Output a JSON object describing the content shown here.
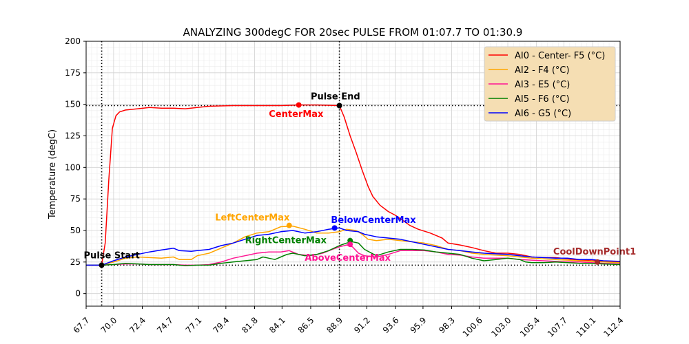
{
  "chart_data": {
    "type": "line",
    "title": "ANALYZING 300degC FOR 20sec PULSE FROM 01:07.7 TO 01:30.9",
    "xlabel": "",
    "ylabel": "Temperature (degC)",
    "xlim": [
      67.7,
      112.4
    ],
    "ylim": [
      -10,
      200
    ],
    "grid": true,
    "legend_position": "top-right",
    "x_ticks": [
      67.7,
      70.0,
      72.4,
      74.7,
      77.1,
      79.4,
      81.8,
      84.1,
      86.5,
      88.9,
      91.2,
      93.6,
      95.9,
      98.3,
      100.6,
      103.0,
      105.4,
      107.7,
      110.1,
      112.4
    ],
    "x_tick_labels": [
      "67.7",
      "70.0",
      "72.4",
      "74.7",
      "77.1",
      "79.4",
      "81.8",
      "84.1",
      "86.5",
      "88.9",
      "91.2",
      "93.6",
      "95.9",
      "98.3",
      "100.6",
      "103.0",
      "105.4",
      "107.7",
      "110.1",
      "112.4"
    ],
    "y_ticks": [
      0,
      25,
      50,
      75,
      100,
      125,
      150,
      175,
      200
    ],
    "y_tick_labels": [
      "0",
      "25",
      "50",
      "75",
      "100",
      "125",
      "150",
      "175",
      "200"
    ],
    "series": [
      {
        "name": "AI0 - Center- F5 (°C)",
        "color": "#ff0000",
        "points": [
          [
            67.7,
            22.5
          ],
          [
            68.5,
            22.5
          ],
          [
            69.0,
            22.5
          ],
          [
            69.3,
            40
          ],
          [
            69.6,
            90
          ],
          [
            69.9,
            131
          ],
          [
            70.2,
            141
          ],
          [
            70.5,
            144
          ],
          [
            71.0,
            145.5
          ],
          [
            72.0,
            146.5
          ],
          [
            73.0,
            147.5
          ],
          [
            74.0,
            147
          ],
          [
            75.0,
            147
          ],
          [
            76.0,
            146.5
          ],
          [
            77.0,
            147.5
          ],
          [
            78.0,
            148.5
          ],
          [
            80.0,
            149
          ],
          [
            82.0,
            149
          ],
          [
            84.0,
            149
          ],
          [
            85.5,
            149.5
          ],
          [
            87.0,
            149.5
          ],
          [
            88.9,
            149
          ],
          [
            89.3,
            140
          ],
          [
            89.8,
            125
          ],
          [
            90.3,
            112
          ],
          [
            90.8,
            98
          ],
          [
            91.3,
            85
          ],
          [
            91.7,
            77
          ],
          [
            92.3,
            70
          ],
          [
            93.0,
            65
          ],
          [
            93.6,
            62
          ],
          [
            94.2,
            58
          ],
          [
            94.8,
            54
          ],
          [
            95.5,
            51
          ],
          [
            96.5,
            48
          ],
          [
            97.5,
            44
          ],
          [
            98.0,
            40
          ],
          [
            99.0,
            38.5
          ],
          [
            100.0,
            36.5
          ],
          [
            101.0,
            34
          ],
          [
            102.0,
            32
          ],
          [
            103.0,
            32
          ],
          [
            104.0,
            31
          ],
          [
            105.0,
            29
          ],
          [
            106.0,
            28.5
          ],
          [
            107.0,
            28.5
          ],
          [
            108.0,
            27.5
          ],
          [
            109.0,
            26.5
          ],
          [
            110.0,
            26
          ],
          [
            111.0,
            25.5
          ],
          [
            112.4,
            25
          ]
        ]
      },
      {
        "name": "AI2 - F4 (°C)",
        "color": "#ffa500",
        "points": [
          [
            67.7,
            22.5
          ],
          [
            69.0,
            22.5
          ],
          [
            70.0,
            25
          ],
          [
            71.0,
            28
          ],
          [
            72.0,
            29
          ],
          [
            73.0,
            28.5
          ],
          [
            74.0,
            28
          ],
          [
            75.0,
            29
          ],
          [
            75.5,
            27
          ],
          [
            76.5,
            27
          ],
          [
            77.0,
            30
          ],
          [
            78.0,
            32
          ],
          [
            79.0,
            36
          ],
          [
            80.0,
            40
          ],
          [
            81.0,
            45
          ],
          [
            82.0,
            48
          ],
          [
            83.0,
            49
          ],
          [
            84.0,
            53
          ],
          [
            85.0,
            53.5
          ],
          [
            86.0,
            51
          ],
          [
            87.0,
            48
          ],
          [
            88.0,
            48
          ],
          [
            88.9,
            49
          ],
          [
            89.5,
            51
          ],
          [
            90.3,
            50
          ],
          [
            90.8,
            47
          ],
          [
            91.3,
            43
          ],
          [
            92.0,
            42
          ],
          [
            93.0,
            43
          ],
          [
            94.0,
            42
          ],
          [
            95.0,
            41
          ],
          [
            96.0,
            40
          ],
          [
            97.0,
            38
          ],
          [
            98.0,
            35
          ],
          [
            99.0,
            34
          ],
          [
            100.0,
            32
          ],
          [
            101.0,
            31
          ],
          [
            102.0,
            30.5
          ],
          [
            103.0,
            30
          ],
          [
            104.0,
            29
          ],
          [
            105.0,
            28
          ],
          [
            106.0,
            27.5
          ],
          [
            107.0,
            27
          ],
          [
            108.0,
            26.5
          ],
          [
            109.0,
            26
          ],
          [
            110.0,
            25.5
          ],
          [
            111.0,
            25
          ],
          [
            112.4,
            24.5
          ]
        ]
      },
      {
        "name": "AI3 - E5 (°C)",
        "color": "#ff1493",
        "points": [
          [
            67.7,
            22.5
          ],
          [
            69.0,
            22.5
          ],
          [
            70.0,
            23
          ],
          [
            71.0,
            23.5
          ],
          [
            72.0,
            23.5
          ],
          [
            73.0,
            23
          ],
          [
            74.0,
            23
          ],
          [
            75.0,
            23
          ],
          [
            76.0,
            22.5
          ],
          [
            77.0,
            22.5
          ],
          [
            78.0,
            23
          ],
          [
            79.0,
            25
          ],
          [
            80.0,
            28
          ],
          [
            81.0,
            30
          ],
          [
            82.0,
            32
          ],
          [
            83.0,
            33
          ],
          [
            84.0,
            33
          ],
          [
            84.7,
            34
          ],
          [
            85.5,
            31
          ],
          [
            86.5,
            30
          ],
          [
            87.5,
            32
          ],
          [
            88.3,
            35
          ],
          [
            88.9,
            37
          ],
          [
            89.5,
            38.5
          ],
          [
            90.0,
            37
          ],
          [
            90.5,
            32
          ],
          [
            91.0,
            30
          ],
          [
            92.0,
            29
          ],
          [
            93.0,
            31
          ],
          [
            94.0,
            34
          ],
          [
            95.0,
            34
          ],
          [
            96.0,
            34
          ],
          [
            97.0,
            33
          ],
          [
            98.0,
            31
          ],
          [
            99.0,
            30.5
          ],
          [
            100.0,
            29
          ],
          [
            101.0,
            28
          ],
          [
            102.0,
            28
          ],
          [
            103.0,
            28
          ],
          [
            104.0,
            27
          ],
          [
            105.0,
            26.5
          ],
          [
            106.0,
            26
          ],
          [
            107.0,
            25.5
          ],
          [
            108.0,
            25
          ],
          [
            109.0,
            25
          ],
          [
            110.0,
            24.5
          ],
          [
            111.0,
            24
          ],
          [
            112.4,
            23.5
          ]
        ]
      },
      {
        "name": "AI5 - F6 (°C)",
        "color": "#008000",
        "points": [
          [
            67.7,
            22.5
          ],
          [
            69.0,
            22.5
          ],
          [
            70.0,
            23
          ],
          [
            71.0,
            24
          ],
          [
            72.0,
            23.5
          ],
          [
            73.0,
            23
          ],
          [
            74.0,
            23
          ],
          [
            75.0,
            23
          ],
          [
            76.0,
            22
          ],
          [
            77.0,
            22.5
          ],
          [
            78.0,
            22.5
          ],
          [
            79.0,
            24
          ],
          [
            80.0,
            25
          ],
          [
            81.0,
            26
          ],
          [
            82.0,
            27
          ],
          [
            82.5,
            29
          ],
          [
            83.0,
            28
          ],
          [
            83.5,
            27
          ],
          [
            84.0,
            29
          ],
          [
            84.5,
            31
          ],
          [
            85.0,
            32
          ],
          [
            86.0,
            30
          ],
          [
            87.0,
            31
          ],
          [
            88.0,
            34
          ],
          [
            88.9,
            38
          ],
          [
            89.5,
            40
          ],
          [
            90.0,
            41
          ],
          [
            90.5,
            40
          ],
          [
            91.0,
            35
          ],
          [
            92.0,
            30
          ],
          [
            93.0,
            33
          ],
          [
            94.0,
            35
          ],
          [
            95.0,
            35
          ],
          [
            96.0,
            34.5
          ],
          [
            97.0,
            33
          ],
          [
            98.0,
            32
          ],
          [
            99.0,
            31
          ],
          [
            100.0,
            28
          ],
          [
            101.0,
            26
          ],
          [
            102.0,
            27
          ],
          [
            103.0,
            28
          ],
          [
            104.0,
            27
          ],
          [
            104.5,
            25
          ],
          [
            105.0,
            24.5
          ],
          [
            106.0,
            24.5
          ],
          [
            107.0,
            25
          ],
          [
            108.0,
            24.5
          ],
          [
            109.0,
            24
          ],
          [
            110.0,
            24
          ],
          [
            111.0,
            23.5
          ],
          [
            112.4,
            23
          ]
        ]
      },
      {
        "name": "AI6 - G5 (°C)",
        "color": "#0000ff",
        "points": [
          [
            67.7,
            22.5
          ],
          [
            69.0,
            22.5
          ],
          [
            70.0,
            26
          ],
          [
            71.0,
            29
          ],
          [
            72.0,
            31
          ],
          [
            73.0,
            33
          ],
          [
            74.0,
            34.5
          ],
          [
            75.0,
            36
          ],
          [
            75.5,
            34
          ],
          [
            76.5,
            33.5
          ],
          [
            77.0,
            34
          ],
          [
            78.0,
            35
          ],
          [
            79.0,
            38
          ],
          [
            80.0,
            40
          ],
          [
            81.0,
            43
          ],
          [
            82.0,
            46
          ],
          [
            83.0,
            47
          ],
          [
            84.0,
            49
          ],
          [
            85.0,
            50
          ],
          [
            86.0,
            48
          ],
          [
            87.0,
            49
          ],
          [
            88.0,
            51
          ],
          [
            88.9,
            52
          ],
          [
            89.5,
            50
          ],
          [
            90.5,
            49
          ],
          [
            91.0,
            47
          ],
          [
            92.0,
            45
          ],
          [
            93.0,
            44
          ],
          [
            94.0,
            43
          ],
          [
            95.0,
            41
          ],
          [
            96.0,
            39
          ],
          [
            97.0,
            37
          ],
          [
            98.0,
            35
          ],
          [
            99.0,
            34
          ],
          [
            100.0,
            33
          ],
          [
            101.0,
            32
          ],
          [
            102.0,
            31.5
          ],
          [
            103.0,
            31
          ],
          [
            104.0,
            30
          ],
          [
            105.0,
            29
          ],
          [
            106.0,
            28.5
          ],
          [
            107.0,
            28
          ],
          [
            108.0,
            28
          ],
          [
            109.0,
            27
          ],
          [
            110.0,
            27
          ],
          [
            111.0,
            26
          ],
          [
            112.4,
            25.5
          ]
        ]
      }
    ],
    "annotations": [
      {
        "text": "Pulse Start",
        "x": 69.0,
        "y": 22.5,
        "color": "#000000",
        "label_x": 67.5,
        "label_y": 28
      },
      {
        "text": "Pulse End",
        "x": 88.9,
        "y": 149,
        "color": "#000000",
        "label_x": 86.5,
        "label_y": 154
      },
      {
        "text": "CenterMax",
        "x": 85.5,
        "y": 149.5,
        "color": "#ff0000",
        "label_x": 83.0,
        "label_y": 140
      },
      {
        "text": "LeftCenterMax",
        "x": 84.7,
        "y": 54,
        "color": "#ffa500",
        "label_x": 78.5,
        "label_y": 58
      },
      {
        "text": "BelowCenterMax",
        "x": 88.5,
        "y": 52,
        "color": "#0000ff",
        "label_x": 88.2,
        "label_y": 56
      },
      {
        "text": "RightCenterMax",
        "x": 89.8,
        "y": 42,
        "color": "#008000",
        "label_x": 81.0,
        "label_y": 40
      },
      {
        "text": "AboveCenterMax",
        "x": 89.8,
        "y": 39,
        "color": "#ff1493",
        "label_x": 86.0,
        "label_y": 26
      },
      {
        "text": "CoolDownPoint1",
        "x": 110.5,
        "y": 25,
        "color": "#a52a2a",
        "label_x": 106.8,
        "label_y": 31
      }
    ],
    "reference_lines": {
      "vertical": [
        69.0,
        88.9
      ],
      "horizontal": [
        149,
        22.5
      ]
    }
  }
}
